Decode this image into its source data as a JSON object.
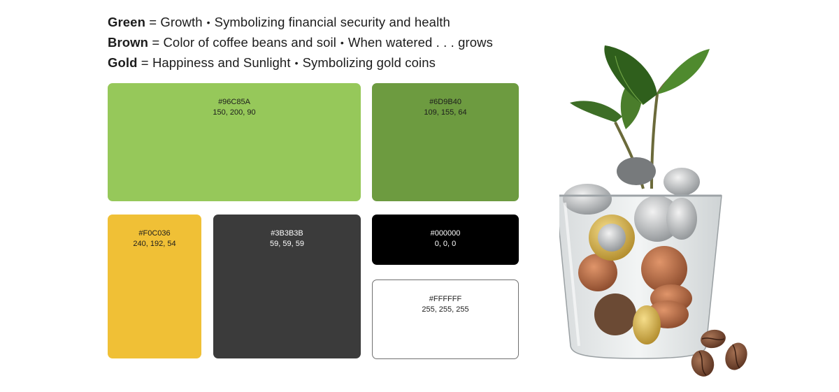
{
  "headline": [
    {
      "term": "Green",
      "eq": "=",
      "meaning": "Growth",
      "sep": "•",
      "note": "Symbolizing financial security and health"
    },
    {
      "term": "Brown",
      "eq": "=",
      "meaning": "Color of coffee beans and soil",
      "sep": "•",
      "note": "When watered . . . grows"
    },
    {
      "term": "Gold",
      "eq": "=",
      "meaning": "Happiness and Sunlight",
      "sep": "•",
      "note": "Symbolizing gold coins"
    }
  ],
  "swatches": [
    {
      "hex": "#96C85A",
      "rgb": "150, 200, 90",
      "color": "#96C85A",
      "text_color": "#1c1c1c"
    },
    {
      "hex": "#6D9B40",
      "rgb": "109, 155, 64",
      "color": "#6D9B40",
      "text_color": "#1c1c1c"
    },
    {
      "hex": "#F0C036",
      "rgb": "240, 192, 54",
      "color": "#F0C036",
      "text_color": "#1c1c1c"
    },
    {
      "hex": "#3B3B3B",
      "rgb": "59, 59, 59",
      "color": "#3B3B3B",
      "text_color": "#ffffff"
    },
    {
      "hex": "#000000",
      "rgb": "0, 0, 0",
      "color": "#000000",
      "text_color": "#ffffff"
    },
    {
      "hex": "#FFFFFF",
      "rgb": "255, 255, 255",
      "color": "#FFFFFF",
      "text_color": "#1c1c1c"
    }
  ],
  "illustration": {
    "subject": "plant sprouting from glass of coins with coffee beans",
    "icon": "plant-coins-jar-icon"
  }
}
